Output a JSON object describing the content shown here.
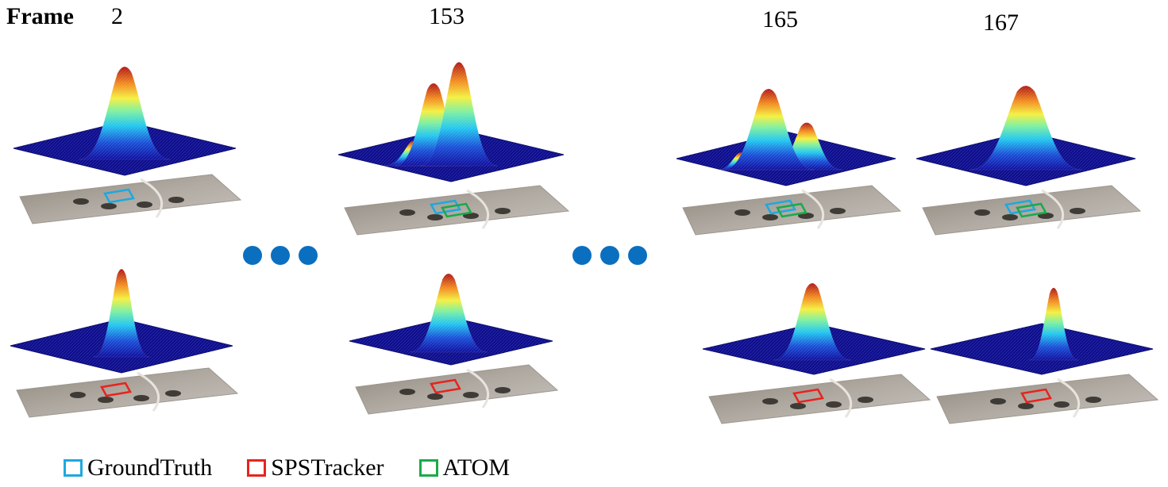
{
  "header": {
    "frame_word": "Frame",
    "frames": [
      "2",
      "153",
      "165",
      "167"
    ]
  },
  "colors": {
    "groundtruth": "#1ea8e0",
    "spstracker": "#e8231e",
    "atom": "#1aaa4a",
    "surface_base": "#0d0d8f",
    "ellipsis_dot": "#0b6fc0",
    "image_plane": "#a9a29a"
  },
  "legend": {
    "items": [
      {
        "key": "groundtruth",
        "label": "GroundTruth"
      },
      {
        "key": "spstracker",
        "label": "SPSTracker"
      },
      {
        "key": "atom",
        "label": "ATOM"
      }
    ]
  },
  "panels": [
    {
      "frame": "2",
      "row": "top",
      "boxes": [
        "groundtruth"
      ],
      "peaks": 1
    },
    {
      "frame": "153",
      "row": "top",
      "boxes": [
        "groundtruth",
        "atom"
      ],
      "peaks": 3
    },
    {
      "frame": "165",
      "row": "top",
      "boxes": [
        "groundtruth",
        "atom"
      ],
      "peaks": 3
    },
    {
      "frame": "167",
      "row": "top",
      "boxes": [
        "groundtruth",
        "atom"
      ],
      "peaks": 1
    },
    {
      "frame": "2",
      "row": "bottom",
      "boxes": [
        "spstracker"
      ],
      "peaks": 1
    },
    {
      "frame": "153",
      "row": "bottom",
      "boxes": [
        "spstracker"
      ],
      "peaks": 1
    },
    {
      "frame": "165",
      "row": "bottom",
      "boxes": [
        "spstracker"
      ],
      "peaks": 1
    },
    {
      "frame": "167",
      "row": "bottom",
      "boxes": [
        "spstracker"
      ],
      "peaks": 1
    }
  ],
  "ellipses": {
    "count": 2,
    "dots_each": 3
  }
}
